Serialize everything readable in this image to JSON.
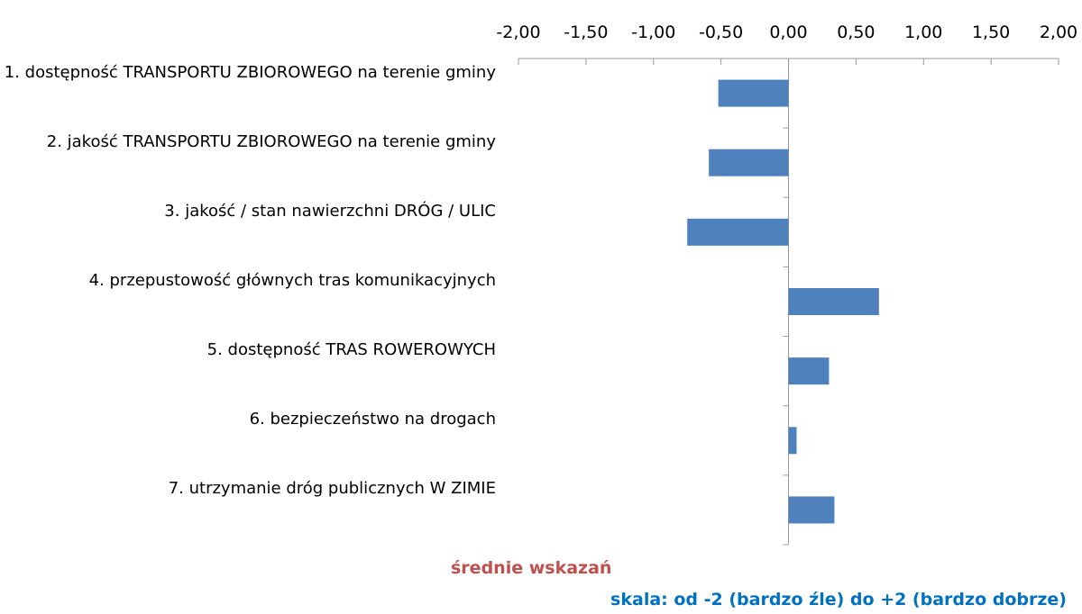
{
  "chart_data": {
    "type": "hbar",
    "categories": [
      "1. dostępność TRANSPORTU ZBIOROWEGO na terenie gminy",
      "2. jakość TRANSPORTU ZBIOROWEGO na terenie gminy",
      "3. jakość / stan nawierzchni DRÓG / ULIC",
      "4. przepustowość głównych tras komunikacyjnych",
      "5. dostępność TRAS ROWEROWYCH",
      "6. bezpieczeństwo na drogach",
      "7. utrzymanie dróg publicznych W ZIMIE"
    ],
    "values": [
      -0.52,
      -0.59,
      -0.75,
      0.67,
      0.3,
      0.06,
      0.34
    ],
    "color": "#4f81bd",
    "xlim": [
      -2,
      2
    ],
    "xticks": [
      {
        "value": -2,
        "label": "-2,00"
      },
      {
        "value": -1.5,
        "label": "-1,50"
      },
      {
        "value": -1,
        "label": "-1,00"
      },
      {
        "value": -0.5,
        "label": "-0,50"
      },
      {
        "value": 0,
        "label": "0,00"
      },
      {
        "value": 0.5,
        "label": "0,50"
      },
      {
        "value": 1,
        "label": "1,00"
      },
      {
        "value": 1.5,
        "label": "1,50"
      },
      {
        "value": 2,
        "label": "2,00"
      }
    ],
    "annotations": [
      "średnie wskazań",
      "skala: od -2 (bardzo źle) do +2 (bardzo dobrze)"
    ]
  }
}
